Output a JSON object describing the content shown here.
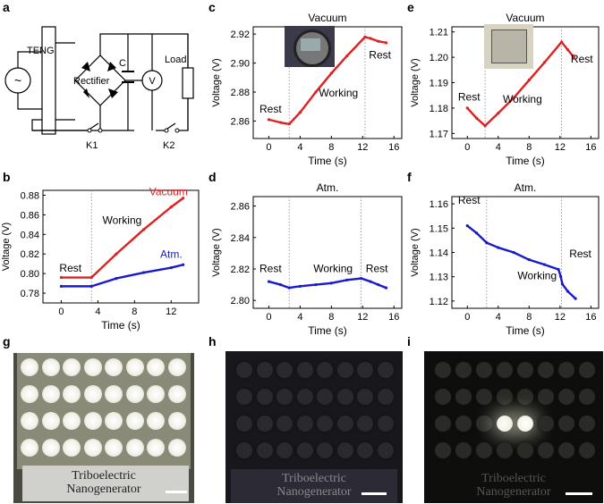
{
  "panel_labels": {
    "a": "a",
    "b": "b",
    "c": "c",
    "d": "d",
    "e": "e",
    "f": "f",
    "g": "g",
    "h": "h",
    "i": "i"
  },
  "circuit": {
    "teng_label": "TENG",
    "rectifier_label": "Rectifier",
    "capacitor_label": "C",
    "voltmeter_label": "V",
    "load_label": "Load",
    "switch1_label": "K1",
    "switch2_label": "K2",
    "source_symbol": "~"
  },
  "photos": {
    "label_line1": "Triboelectric",
    "label_line2": "Nanogenerator"
  },
  "colors": {
    "red": "#e02020",
    "blue": "#1a1acc",
    "grid": "#888888"
  },
  "chart_data": [
    {
      "panel": "b",
      "type": "line",
      "title": "",
      "xlabel": "Time (s)",
      "ylabel": "Voltage (V)",
      "xlim": [
        -2,
        15
      ],
      "ylim": [
        0.77,
        0.885
      ],
      "xticks": [
        0,
        4,
        8,
        12
      ],
      "yticks": [
        0.78,
        0.8,
        0.82,
        0.84,
        0.86,
        0.88
      ],
      "ytick_labels": [
        "0.78",
        "0.80",
        "0.82",
        "0.84",
        "0.86",
        "0.88"
      ],
      "vlines": [
        3.3
      ],
      "series": [
        {
          "name": "Vacuum",
          "color": "#e02020",
          "x": [
            0,
            3.3,
            6,
            9,
            12,
            13.3
          ],
          "y": [
            0.796,
            0.796,
            0.82,
            0.845,
            0.868,
            0.877
          ]
        },
        {
          "name": "Atm.",
          "color": "#1a1acc",
          "x": [
            0,
            3.3,
            6,
            9,
            12,
            13.3
          ],
          "y": [
            0.787,
            0.787,
            0.795,
            0.801,
            0.806,
            0.809
          ]
        }
      ],
      "annotations": [
        {
          "text": "Rest",
          "x": -0.2,
          "y": 0.802
        },
        {
          "text": "Working",
          "x": 4.5,
          "y": 0.851
        },
        {
          "text": "Vacuum",
          "x": 9.6,
          "y": 0.88,
          "color": "#e02020"
        },
        {
          "text": "Atm.",
          "x": 10.8,
          "y": 0.816,
          "color": "#1a1acc"
        }
      ]
    },
    {
      "panel": "c",
      "type": "line",
      "title": "Vacuum",
      "xlabel": "Time (s)",
      "ylabel": "Voltage (V)",
      "xlim": [
        -2,
        17
      ],
      "ylim": [
        2.848,
        2.925
      ],
      "xticks": [
        0,
        4,
        8,
        12,
        16
      ],
      "yticks": [
        2.86,
        2.88,
        2.9,
        2.92
      ],
      "ytick_labels": [
        "2.86",
        "2.88",
        "2.90",
        "2.92"
      ],
      "vlines": [
        2.6,
        12.3
      ],
      "series": [
        {
          "name": "Vacuum",
          "color": "#e02020",
          "x": [
            0,
            1.5,
            2.6,
            4,
            6,
            8,
            10,
            12.3,
            13,
            14,
            15
          ],
          "y": [
            2.861,
            2.859,
            2.858,
            2.866,
            2.88,
            2.893,
            2.905,
            2.918,
            2.917,
            2.915,
            2.914
          ]
        }
      ],
      "annotations": [
        {
          "text": "Rest",
          "x": -1.2,
          "y": 2.866
        },
        {
          "text": "Working",
          "x": 6.4,
          "y": 2.877
        },
        {
          "text": "Rest",
          "x": 12.8,
          "y": 2.903
        }
      ]
    },
    {
      "panel": "d",
      "type": "line",
      "title": "Atm.",
      "xlabel": "Time (s)",
      "ylabel": "Voltage (V)",
      "xlim": [
        -2,
        17
      ],
      "ylim": [
        2.795,
        2.866
      ],
      "xticks": [
        0,
        4,
        8,
        12,
        16
      ],
      "yticks": [
        2.8,
        2.82,
        2.84,
        2.86
      ],
      "ytick_labels": [
        "2.80",
        "2.82",
        "2.84",
        "2.86"
      ],
      "vlines": [
        2.6,
        11.8
      ],
      "series": [
        {
          "name": "Atm.",
          "color": "#1a1acc",
          "x": [
            0,
            1.5,
            2.6,
            4,
            6,
            8,
            10,
            11.8,
            13,
            14,
            15
          ],
          "y": [
            2.812,
            2.81,
            2.808,
            2.809,
            2.81,
            2.811,
            2.813,
            2.814,
            2.812,
            2.81,
            2.808
          ]
        }
      ],
      "annotations": [
        {
          "text": "Rest",
          "x": -1.2,
          "y": 2.818
        },
        {
          "text": "Working",
          "x": 5.7,
          "y": 2.818
        },
        {
          "text": "Rest",
          "x": 12.4,
          "y": 2.818
        }
      ]
    },
    {
      "panel": "e",
      "type": "line",
      "title": "Vacuum",
      "xlabel": "Time (s)",
      "ylabel": "Voltage (V)",
      "xlim": [
        -2,
        17
      ],
      "ylim": [
        1.168,
        1.212
      ],
      "xticks": [
        0,
        4,
        8,
        12,
        16
      ],
      "yticks": [
        1.17,
        1.18,
        1.19,
        1.2,
        1.21
      ],
      "ytick_labels": [
        "1.17",
        "1.18",
        "1.19",
        "1.20",
        "1.21"
      ],
      "vlines": [
        2.3,
        12.2
      ],
      "series": [
        {
          "name": "Vacuum",
          "color": "#e02020",
          "x": [
            0,
            1.2,
            2.3,
            4,
            6,
            8,
            10,
            12.2,
            13,
            13.8
          ],
          "y": [
            1.18,
            1.176,
            1.173,
            1.178,
            1.184,
            1.191,
            1.198,
            1.206,
            1.203,
            1.2
          ]
        }
      ],
      "annotations": [
        {
          "text": "Rest",
          "x": -1.2,
          "y": 1.183
        },
        {
          "text": "Working",
          "x": 4.6,
          "y": 1.182
        },
        {
          "text": "Rest",
          "x": 13.4,
          "y": 1.198
        }
      ]
    },
    {
      "panel": "f",
      "type": "line",
      "title": "Atm.",
      "xlabel": "Time (s)",
      "ylabel": "Voltage (V)",
      "xlim": [
        -2,
        17
      ],
      "ylim": [
        1.117,
        1.163
      ],
      "xticks": [
        0,
        4,
        8,
        12,
        16
      ],
      "yticks": [
        1.12,
        1.13,
        1.14,
        1.15,
        1.16
      ],
      "ytick_labels": [
        "1.12",
        "1.13",
        "1.14",
        "1.15",
        "1.16"
      ],
      "vlines": [
        2.5,
        12.2
      ],
      "series": [
        {
          "name": "Atm.",
          "color": "#1a1acc",
          "x": [
            0,
            1.2,
            2.5,
            4,
            6,
            8,
            10,
            11.8,
            12.1,
            12.3,
            13,
            14
          ],
          "y": [
            1.151,
            1.148,
            1.144,
            1.142,
            1.14,
            1.137,
            1.135,
            1.133,
            1.13,
            1.127,
            1.124,
            1.121
          ]
        }
      ],
      "annotations": [
        {
          "text": "Rest",
          "x": -1.2,
          "y": 1.16
        },
        {
          "text": "Working",
          "x": 6.5,
          "y": 1.129
        },
        {
          "text": "Rest",
          "x": 13.2,
          "y": 1.138
        }
      ]
    }
  ]
}
